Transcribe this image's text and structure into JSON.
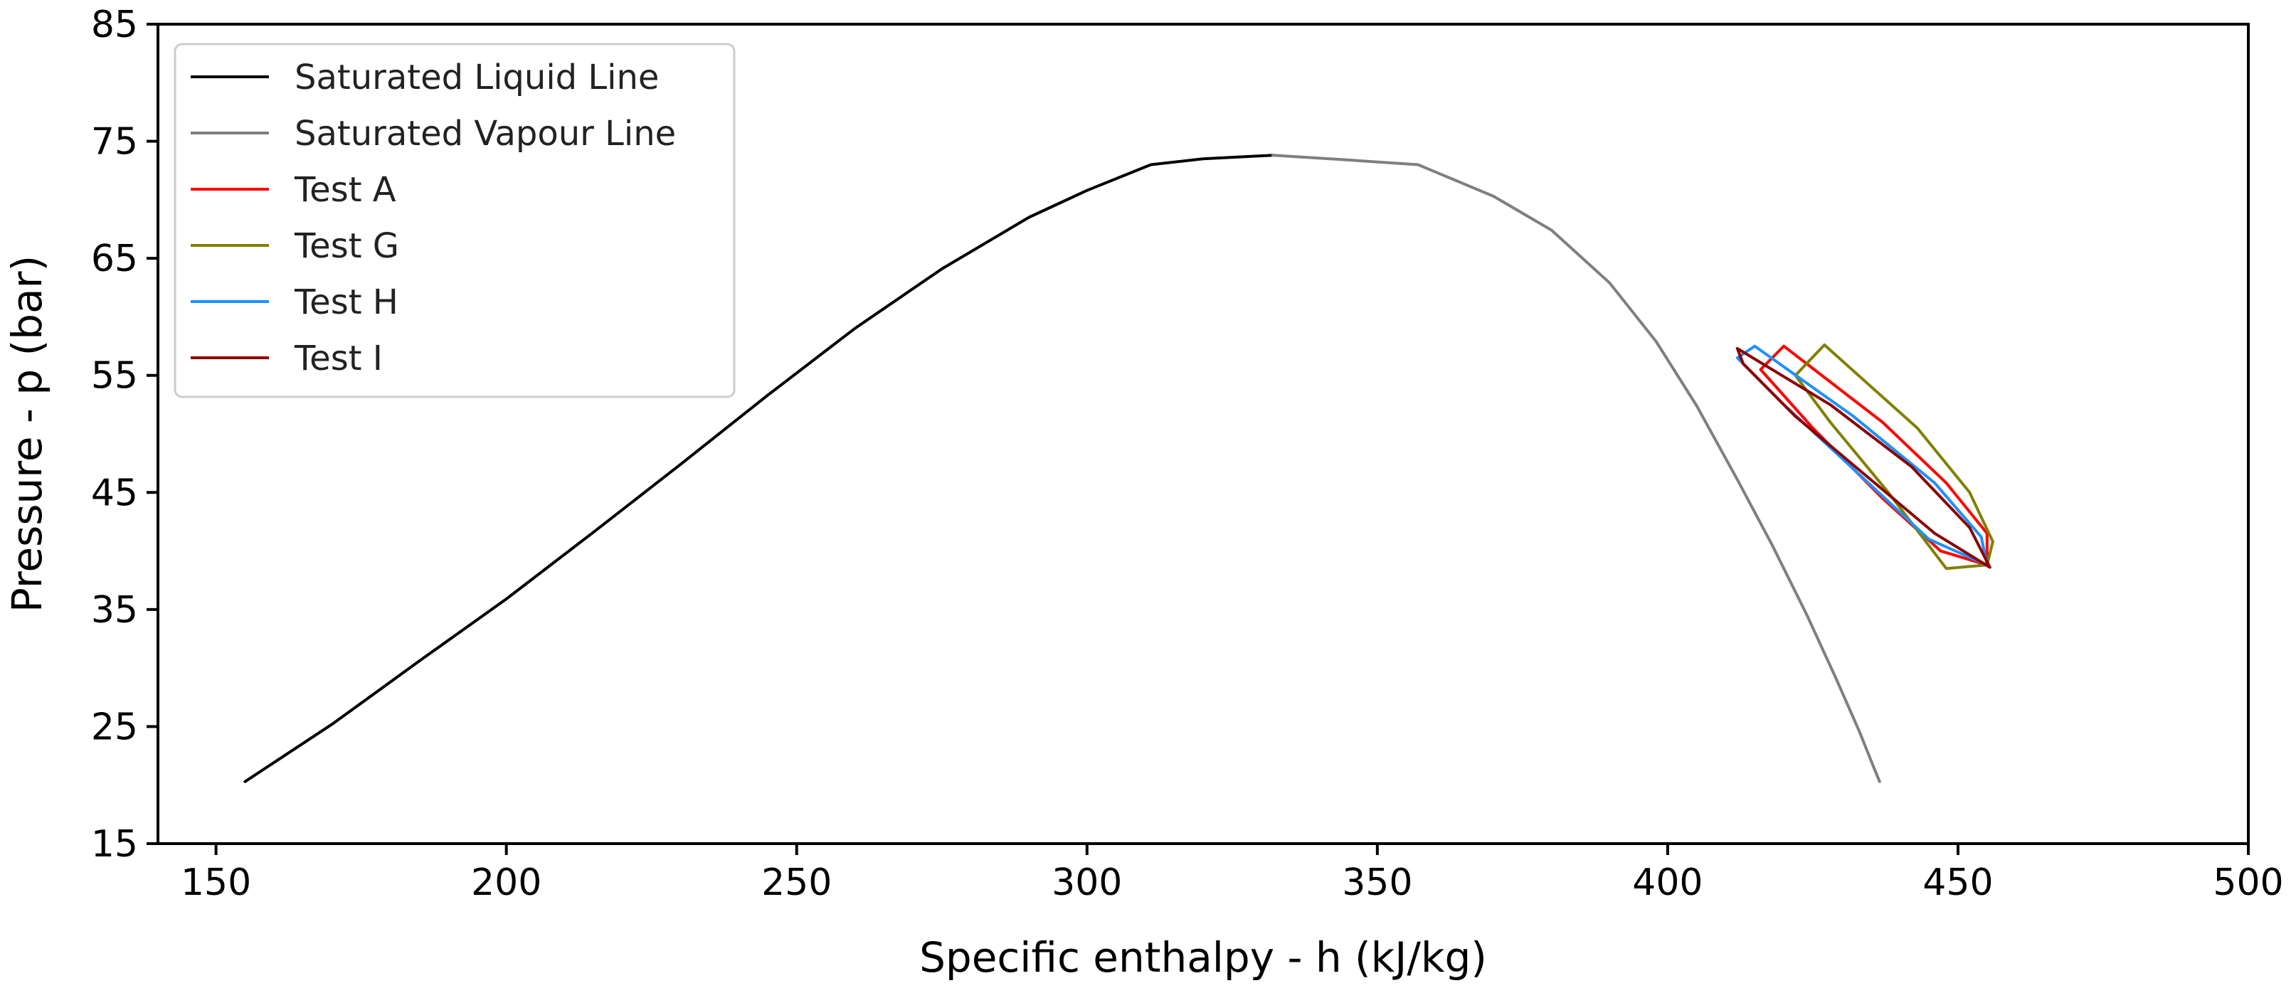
{
  "chart_data": {
    "type": "line",
    "title": "",
    "xlabel": "Specific enthalpy - h (kJ/kg)",
    "ylabel": "Pressure - p (bar)",
    "xlim": [
      140,
      500
    ],
    "ylim": [
      15,
      85
    ],
    "xticks": [
      150,
      200,
      250,
      300,
      350,
      400,
      450,
      500
    ],
    "xtick_labels": [
      "150",
      "200",
      "250",
      "300",
      "350",
      "400",
      "450",
      "500"
    ],
    "yticks": [
      15,
      25,
      35,
      45,
      55,
      65,
      75,
      85
    ],
    "ytick_labels": [
      "15",
      "25",
      "35",
      "45",
      "55",
      "65",
      "75",
      "85"
    ],
    "grid": false,
    "legend_position": "upper-left",
    "series": [
      {
        "name": "Saturated Liquid Line",
        "color": "#000000",
        "points": [
          [
            155.0,
            20.3
          ],
          [
            170,
            25.2
          ],
          [
            185,
            30.6
          ],
          [
            200,
            35.9
          ],
          [
            215,
            41.6
          ],
          [
            230,
            47.4
          ],
          [
            245,
            53.3
          ],
          [
            260,
            59.0
          ],
          [
            275,
            64.1
          ],
          [
            290,
            68.5
          ],
          [
            300,
            70.8
          ],
          [
            311,
            73.0
          ],
          [
            320,
            73.5
          ],
          [
            332,
            73.8
          ]
        ]
      },
      {
        "name": "Saturated Vapour Line",
        "color": "#7f7f7f",
        "points": [
          [
            332,
            73.8
          ],
          [
            345,
            73.4
          ],
          [
            357,
            73.0
          ],
          [
            370,
            70.3
          ],
          [
            380,
            67.4
          ],
          [
            390,
            62.9
          ],
          [
            398,
            57.9
          ],
          [
            405,
            52.4
          ],
          [
            412,
            46.1
          ],
          [
            418,
            40.5
          ],
          [
            424,
            34.5
          ],
          [
            429,
            29.1
          ],
          [
            433,
            24.6
          ],
          [
            435.5,
            21.5
          ],
          [
            436.5,
            20.3
          ]
        ]
      },
      {
        "name": "Test A",
        "color": "#ff0000",
        "points": [
          [
            420,
            57.5
          ],
          [
            437,
            51.0
          ],
          [
            448,
            45.8
          ],
          [
            455,
            41.5
          ],
          [
            455,
            38.8
          ],
          [
            447,
            40.0
          ],
          [
            437,
            44.5
          ],
          [
            425,
            50.5
          ],
          [
            416,
            55.5
          ],
          [
            420,
            57.5
          ]
        ]
      },
      {
        "name": "Test G",
        "color": "#808000",
        "points": [
          [
            427,
            57.6
          ],
          [
            443,
            50.5
          ],
          [
            452,
            45.0
          ],
          [
            456,
            40.8
          ],
          [
            455,
            38.8
          ],
          [
            448,
            38.5
          ],
          [
            438,
            45.0
          ],
          [
            428,
            51.0
          ],
          [
            422,
            55.0
          ],
          [
            427,
            57.6
          ]
        ]
      },
      {
        "name": "Test H",
        "color": "#1e90ff",
        "points": [
          [
            415,
            57.5
          ],
          [
            432,
            51.5
          ],
          [
            446,
            45.8
          ],
          [
            454,
            41.2
          ],
          [
            455,
            38.8
          ],
          [
            445,
            41.0
          ],
          [
            432,
            47.0
          ],
          [
            420,
            52.5
          ],
          [
            412,
            56.5
          ],
          [
            415,
            57.5
          ]
        ]
      },
      {
        "name": "Test I",
        "color": "#8b0000",
        "points": [
          [
            412,
            57.3
          ],
          [
            428,
            52.5
          ],
          [
            442,
            47.2
          ],
          [
            452,
            42.0
          ],
          [
            455.5,
            38.6
          ],
          [
            446,
            41.5
          ],
          [
            434,
            46.5
          ],
          [
            422,
            51.5
          ],
          [
            413,
            56.0
          ],
          [
            412,
            57.3
          ]
        ]
      }
    ]
  }
}
